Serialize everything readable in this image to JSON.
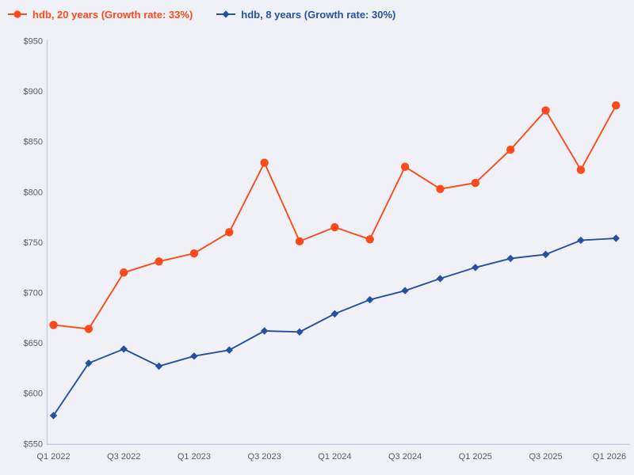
{
  "legend": [
    {
      "label": "hdb, 20 years (Growth rate: 33%)",
      "color": "#fb4b1d",
      "marker": "circle"
    },
    {
      "label": "hdb, 8 years (Growth rate: 30%)",
      "color": "#2451a0",
      "marker": "diamond"
    }
  ],
  "colors": {
    "background": "#f0f1f6",
    "axis_line": "#c2cde2",
    "tick_text": "#575c64",
    "series_20y": "#fb4b1d",
    "series_8y": "#2451a0"
  },
  "chart_data": {
    "type": "line",
    "x": [
      "Q1 2022",
      "Q2 2022",
      "Q3 2022",
      "Q4 2022",
      "Q1 2023",
      "Q2 2023",
      "Q3 2023",
      "Q4 2023",
      "Q1 2024",
      "Q2 2024",
      "Q3 2024",
      "Q4 2024",
      "Q1 2025",
      "Q2 2025",
      "Q3 2025",
      "Q4 2025",
      "Q1 2026"
    ],
    "x_tick_labels": [
      "Q1 2022",
      "Q3 2022",
      "Q1 2023",
      "Q3 2023",
      "Q1 2024",
      "Q3 2024",
      "Q1 2025",
      "Q3 2025",
      "Q1 2026"
    ],
    "series": [
      {
        "name": "hdb, 20 years (Growth rate: 33%)",
        "color": "#fb4b1d",
        "marker": "circle",
        "values": [
          668,
          664,
          720,
          731,
          739,
          760,
          829,
          751,
          765,
          753,
          825,
          803,
          809,
          842,
          881,
          822,
          886
        ]
      },
      {
        "name": "hdb, 8 years (Growth rate: 30%)",
        "color": "#2451a0",
        "marker": "diamond",
        "values": [
          578,
          630,
          644,
          627,
          637,
          643,
          662,
          661,
          679,
          693,
          702,
          714,
          725,
          734,
          738,
          752,
          754
        ]
      }
    ],
    "title": "",
    "xlabel": "",
    "ylabel": "",
    "ylabel_prefix": "$",
    "ylim": [
      550,
      950
    ],
    "ytick_step": 50,
    "ytick_labels": [
      "$550",
      "$600",
      "$650",
      "$700",
      "$750",
      "$800",
      "$850",
      "$900",
      "$950"
    ],
    "grid": false,
    "legend_position": "top-left"
  }
}
